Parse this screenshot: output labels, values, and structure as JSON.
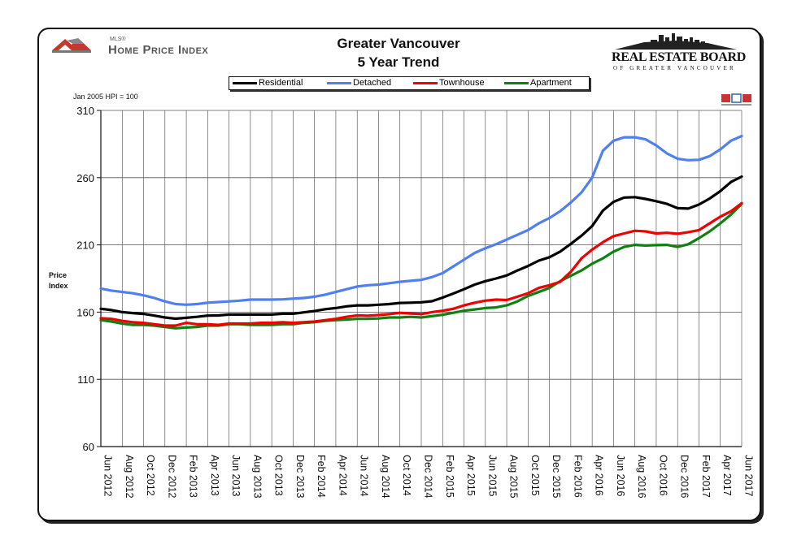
{
  "header": {
    "title_line1": "Greater Vancouver",
    "title_line2": "5 Year Trend",
    "hpi_logo_small": "MLS®",
    "hpi_logo_text": "Home Price Index",
    "board_name": "REAL ESTATE BOARD",
    "board_sub": "OF GREATER VANCOUVER",
    "mls_badge_text": "MLS"
  },
  "colors": {
    "residential": "#000000",
    "detached": "#4f7ff0",
    "townhouse": "#f00000",
    "apartment": "#108010"
  },
  "chart_data": {
    "type": "line",
    "title": "Greater Vancouver 5 Year Trend",
    "base_note": "Jan 2005 HPI = 100",
    "ylabel": "Price Index",
    "xlabel": "",
    "ylim": [
      60,
      310
    ],
    "yticks": [
      "310",
      "260",
      "210",
      "160",
      "110",
      "60"
    ],
    "grid": true,
    "legend_placement": "top",
    "x_tick_labels": [
      "Jun 2012",
      "Aug 2012",
      "Oct 2012",
      "Dec 2012",
      "Feb 2013",
      "Apr 2013",
      "Jun 2013",
      "Aug 2013",
      "Oct 2013",
      "Dec 2013",
      "Feb 2014",
      "Apr 2014",
      "Jun 2014",
      "Aug 2014",
      "Oct 2014",
      "Dec 2014",
      "Feb 2015",
      "Apr 2015",
      "Jun 2015",
      "Aug 2015",
      "Oct 2015",
      "Dec 2015",
      "Feb 2016",
      "Apr 2016",
      "Jun 2016",
      "Aug 2016",
      "Oct 2016",
      "Dec 2016",
      "Feb 2017",
      "Apr 2017",
      "Jun 2017"
    ],
    "x": [
      "Jun 2012",
      "Jul 2012",
      "Aug 2012",
      "Sep 2012",
      "Oct 2012",
      "Nov 2012",
      "Dec 2012",
      "Jan 2013",
      "Feb 2013",
      "Mar 2013",
      "Apr 2013",
      "May 2013",
      "Jun 2013",
      "Jul 2013",
      "Aug 2013",
      "Sep 2013",
      "Oct 2013",
      "Nov 2013",
      "Dec 2013",
      "Jan 2014",
      "Feb 2014",
      "Mar 2014",
      "Apr 2014",
      "May 2014",
      "Jun 2014",
      "Jul 2014",
      "Aug 2014",
      "Sep 2014",
      "Oct 2014",
      "Nov 2014",
      "Dec 2014",
      "Jan 2015",
      "Feb 2015",
      "Mar 2015",
      "Apr 2015",
      "May 2015",
      "Jun 2015",
      "Jul 2015",
      "Aug 2015",
      "Sep 2015",
      "Oct 2015",
      "Nov 2015",
      "Dec 2015",
      "Jan 2016",
      "Feb 2016",
      "Mar 2016",
      "Apr 2016",
      "May 2016",
      "Jun 2016",
      "Jul 2016",
      "Aug 2016",
      "Sep 2016",
      "Oct 2016",
      "Nov 2016",
      "Dec 2016",
      "Jan 2017",
      "Feb 2017",
      "Mar 2017",
      "Apr 2017",
      "May 2017",
      "Jun 2017"
    ],
    "series": [
      {
        "name": "Residential",
        "key": "residential",
        "values": [
          162.5,
          161.5,
          160,
          159.3,
          158.7,
          157.4,
          156,
          155.1,
          155.8,
          156.5,
          157.4,
          157.5,
          158.2,
          158.2,
          158.2,
          158.2,
          158.2,
          158.8,
          158.8,
          159.8,
          160.8,
          162.2,
          163.0,
          164.3,
          165.0,
          165.0,
          165.5,
          166.0,
          166.8,
          167.0,
          167.3,
          168.1,
          170.8,
          173.8,
          177.0,
          180.5,
          183.0,
          185.0,
          187.3,
          191.0,
          194.3,
          198.3,
          200.8,
          205.0,
          210.8,
          216.8,
          224.0,
          235.5,
          242.0,
          245.2,
          245.5,
          244.2,
          242.5,
          240.5,
          237.3,
          237.0,
          240.0,
          244.5,
          250.0,
          256.8,
          260.8
        ]
      },
      {
        "name": "Detached",
        "key": "detached",
        "values": [
          177.5,
          176.0,
          175.0,
          174.0,
          172.5,
          170.5,
          168.0,
          166.0,
          165.5,
          166.0,
          167.0,
          167.5,
          168.0,
          168.5,
          169.3,
          169.3,
          169.3,
          169.5,
          170.0,
          170.5,
          171.5,
          173.0,
          175.0,
          177.0,
          179.0,
          180.0,
          180.5,
          181.5,
          182.5,
          183.3,
          184.0,
          186.0,
          189.0,
          194.0,
          199.0,
          204.0,
          207.5,
          210.5,
          214.0,
          217.5,
          221.0,
          226.0,
          230.0,
          235.0,
          241.5,
          249.0,
          260.0,
          280.0,
          287.5,
          290.0,
          290.0,
          288.5,
          284.0,
          278.0,
          274.0,
          273.0,
          273.3,
          276.0,
          281.0,
          287.5,
          291.0
        ]
      },
      {
        "name": "Townhouse",
        "key": "townhouse",
        "values": [
          155.5,
          155.0,
          153.5,
          152.5,
          152.0,
          151.0,
          150.0,
          150.0,
          152.0,
          151.0,
          151.0,
          150.5,
          151.5,
          151.5,
          151.5,
          152.0,
          152.0,
          152.5,
          152.0,
          152.5,
          153.0,
          154.0,
          155.0,
          156.5,
          157.5,
          157.3,
          157.8,
          158.5,
          159.5,
          159.0,
          158.5,
          160.0,
          161.0,
          162.5,
          165.0,
          167.0,
          168.5,
          169.3,
          169.0,
          171.5,
          174.0,
          178.0,
          180.0,
          182.5,
          190.0,
          200.0,
          206.5,
          212.0,
          216.5,
          218.5,
          220.5,
          220.0,
          218.5,
          219.0,
          218.3,
          219.5,
          221.0,
          226.0,
          231.0,
          235.0,
          241.0
        ]
      },
      {
        "name": "Apartment",
        "key": "apartment",
        "values": [
          154.0,
          153.0,
          151.5,
          150.5,
          150.5,
          150.0,
          149.0,
          148.0,
          148.5,
          149.0,
          150.0,
          150.0,
          151.0,
          151.0,
          150.5,
          150.5,
          150.5,
          151.0,
          151.0,
          152.0,
          152.5,
          153.5,
          154.0,
          154.5,
          155.0,
          155.0,
          155.3,
          156.0,
          156.0,
          156.5,
          156.0,
          157.0,
          158.0,
          159.5,
          161.0,
          162.0,
          163.0,
          163.5,
          165.0,
          168.0,
          172.0,
          175.0,
          178.0,
          183.0,
          187.0,
          191.0,
          196.0,
          200.0,
          205.0,
          208.5,
          210.0,
          209.5,
          209.8,
          210.0,
          208.5,
          210.5,
          215.0,
          220.0,
          226.0,
          232.5,
          240.5
        ]
      }
    ]
  }
}
